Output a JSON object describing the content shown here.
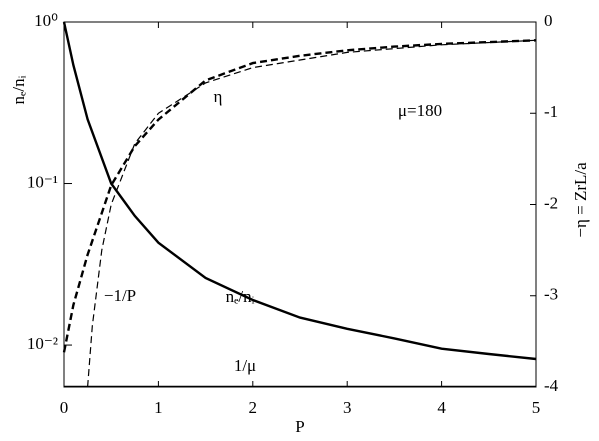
{
  "chart_data": {
    "type": "line",
    "x_label": "P",
    "y_label": "nₑ/nᵢ",
    "y2_label": "−η = ZrL/a",
    "xlim": [
      0,
      5
    ],
    "xticks": [
      0,
      1,
      2,
      3,
      4,
      5
    ],
    "ylim": [
      0.0055,
      1
    ],
    "ylog": true,
    "yticks": [
      {
        "value": 1,
        "label": "10⁰"
      },
      {
        "value": 0.1,
        "label": "10⁻¹"
      },
      {
        "value": 0.01,
        "label": "10⁻²"
      }
    ],
    "y2lim": [
      -4,
      0
    ],
    "y2ticks": [
      0,
      -1,
      -2,
      -3,
      -4
    ],
    "series": [
      {
        "name": "nₑ/nᵢ",
        "color": "#000",
        "dash": "solid",
        "width": 2.4,
        "axis": "y",
        "x": [
          0,
          0.1,
          0.25,
          0.5,
          0.75,
          1,
          1.5,
          2,
          2.5,
          3,
          3.5,
          4,
          4.5,
          5
        ],
        "values": [
          1,
          0.54,
          0.25,
          0.1,
          0.063,
          0.043,
          0.026,
          0.019,
          0.0148,
          0.0126,
          0.011,
          0.0095,
          0.0088,
          0.0082
        ]
      },
      {
        "name": "η",
        "color": "#000",
        "dash": "dashed",
        "width": 2.4,
        "axis": "y2",
        "x": [
          0,
          0.1,
          0.25,
          0.5,
          0.75,
          1,
          1.5,
          2,
          2.5,
          3,
          3.5,
          4,
          4.5,
          5
        ],
        "values": [
          -3.62,
          -3.1,
          -2.55,
          -1.79,
          -1.36,
          -1.07,
          -0.64,
          -0.45,
          -0.37,
          -0.31,
          -0.27,
          -0.24,
          -0.22,
          -0.2
        ]
      },
      {
        "name": "−1/P",
        "color": "#000",
        "dash": "dashed",
        "width": 1.2,
        "axis": "y2",
        "x": [
          0.25,
          0.3,
          0.4,
          0.5,
          0.75,
          1,
          1.5,
          2,
          3,
          4,
          5
        ],
        "values": [
          -4,
          -3.333,
          -2.5,
          -2,
          -1.333,
          -1,
          -0.667,
          -0.5,
          -0.333,
          -0.25,
          -0.2
        ]
      },
      {
        "name": "1/μ",
        "color": "#000",
        "dash": "solid",
        "width": 1.2,
        "axis": "y",
        "x": [
          0,
          5
        ],
        "values": [
          0.005556,
          0.005556
        ]
      }
    ],
    "annotation": "μ=180"
  }
}
